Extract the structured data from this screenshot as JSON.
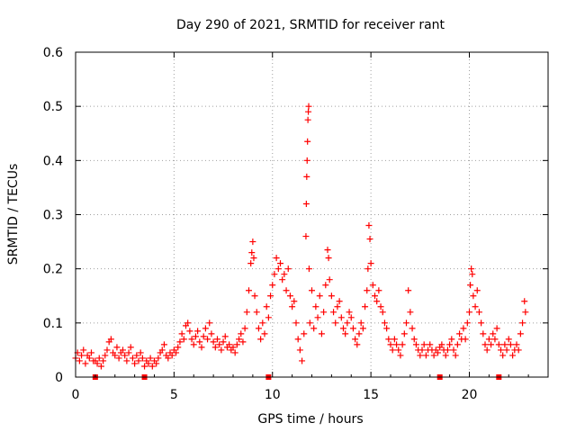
{
  "chart_data": {
    "type": "scatter",
    "title": "Day 290 of 2021, SRMTID for receiver rant",
    "xlabel": "GPS time / hours",
    "ylabel": "SRMTID / TECUs",
    "xlim": [
      0,
      24
    ],
    "ylim": [
      0,
      0.6
    ],
    "xticks": [
      0,
      5,
      10,
      15,
      20
    ],
    "yticks": [
      0,
      0.1,
      0.2,
      0.3,
      0.4,
      0.5,
      0.6
    ],
    "xtick_labels": [
      "0",
      "5",
      "10",
      "15",
      "20"
    ],
    "ytick_labels": [
      "0",
      "0.1",
      "0.2",
      "0.3",
      "0.4",
      "0.5",
      "0.6"
    ],
    "grid": true,
    "marker": "plus",
    "color": "#ff0000",
    "series": [
      {
        "name": "SRMTID",
        "points": [
          [
            0.0,
            0.035
          ],
          [
            0.1,
            0.045
          ],
          [
            0.2,
            0.03
          ],
          [
            0.3,
            0.04
          ],
          [
            0.4,
            0.05
          ],
          [
            0.5,
            0.025
          ],
          [
            0.6,
            0.04
          ],
          [
            0.7,
            0.035
          ],
          [
            0.8,
            0.045
          ],
          [
            0.9,
            0.03
          ],
          [
            1.0,
            0.03
          ],
          [
            1.1,
            0.025
          ],
          [
            1.2,
            0.035
          ],
          [
            1.3,
            0.02
          ],
          [
            1.4,
            0.03
          ],
          [
            1.5,
            0.04
          ],
          [
            1.6,
            0.05
          ],
          [
            1.7,
            0.065
          ],
          [
            1.8,
            0.07
          ],
          [
            1.9,
            0.045
          ],
          [
            2.0,
            0.04
          ],
          [
            2.1,
            0.055
          ],
          [
            2.2,
            0.035
          ],
          [
            2.3,
            0.045
          ],
          [
            2.4,
            0.05
          ],
          [
            2.5,
            0.04
          ],
          [
            2.6,
            0.03
          ],
          [
            2.7,
            0.045
          ],
          [
            2.8,
            0.055
          ],
          [
            2.9,
            0.035
          ],
          [
            3.0,
            0.025
          ],
          [
            3.1,
            0.04
          ],
          [
            3.2,
            0.03
          ],
          [
            3.3,
            0.045
          ],
          [
            3.4,
            0.035
          ],
          [
            3.5,
            0.02
          ],
          [
            3.6,
            0.03
          ],
          [
            3.7,
            0.025
          ],
          [
            3.8,
            0.035
          ],
          [
            3.9,
            0.02
          ],
          [
            4.0,
            0.03
          ],
          [
            4.1,
            0.025
          ],
          [
            4.2,
            0.035
          ],
          [
            4.3,
            0.045
          ],
          [
            4.4,
            0.05
          ],
          [
            4.5,
            0.06
          ],
          [
            4.6,
            0.04
          ],
          [
            4.7,
            0.035
          ],
          [
            4.8,
            0.045
          ],
          [
            4.9,
            0.04
          ],
          [
            5.0,
            0.05
          ],
          [
            5.1,
            0.045
          ],
          [
            5.2,
            0.055
          ],
          [
            5.3,
            0.065
          ],
          [
            5.4,
            0.08
          ],
          [
            5.5,
            0.07
          ],
          [
            5.6,
            0.095
          ],
          [
            5.7,
            0.1
          ],
          [
            5.8,
            0.085
          ],
          [
            5.9,
            0.07
          ],
          [
            6.0,
            0.06
          ],
          [
            6.1,
            0.075
          ],
          [
            6.2,
            0.085
          ],
          [
            6.3,
            0.065
          ],
          [
            6.4,
            0.055
          ],
          [
            6.5,
            0.075
          ],
          [
            6.6,
            0.09
          ],
          [
            6.7,
            0.07
          ],
          [
            6.8,
            0.1
          ],
          [
            6.9,
            0.08
          ],
          [
            7.0,
            0.065
          ],
          [
            7.1,
            0.055
          ],
          [
            7.2,
            0.07
          ],
          [
            7.3,
            0.06
          ],
          [
            7.4,
            0.05
          ],
          [
            7.5,
            0.065
          ],
          [
            7.6,
            0.075
          ],
          [
            7.7,
            0.055
          ],
          [
            7.8,
            0.06
          ],
          [
            7.9,
            0.05
          ],
          [
            8.0,
            0.055
          ],
          [
            8.1,
            0.045
          ],
          [
            8.2,
            0.06
          ],
          [
            8.3,
            0.07
          ],
          [
            8.4,
            0.08
          ],
          [
            8.5,
            0.065
          ],
          [
            8.6,
            0.09
          ],
          [
            8.7,
            0.12
          ],
          [
            8.8,
            0.16
          ],
          [
            8.9,
            0.21
          ],
          [
            8.95,
            0.23
          ],
          [
            9.0,
            0.25
          ],
          [
            9.05,
            0.22
          ],
          [
            9.1,
            0.15
          ],
          [
            9.2,
            0.12
          ],
          [
            9.3,
            0.09
          ],
          [
            9.4,
            0.07
          ],
          [
            9.5,
            0.1
          ],
          [
            9.6,
            0.08
          ],
          [
            9.7,
            0.13
          ],
          [
            9.8,
            0.11
          ],
          [
            9.9,
            0.15
          ],
          [
            10.0,
            0.17
          ],
          [
            10.1,
            0.19
          ],
          [
            10.2,
            0.22
          ],
          [
            10.3,
            0.2
          ],
          [
            10.4,
            0.21
          ],
          [
            10.5,
            0.18
          ],
          [
            10.6,
            0.19
          ],
          [
            10.7,
            0.16
          ],
          [
            10.8,
            0.2
          ],
          [
            10.9,
            0.15
          ],
          [
            11.0,
            0.13
          ],
          [
            11.1,
            0.14
          ],
          [
            11.2,
            0.1
          ],
          [
            11.3,
            0.07
          ],
          [
            11.4,
            0.05
          ],
          [
            11.5,
            0.03
          ],
          [
            11.6,
            0.08
          ],
          [
            11.7,
            0.26
          ],
          [
            11.72,
            0.32
          ],
          [
            11.74,
            0.37
          ],
          [
            11.76,
            0.4
          ],
          [
            11.78,
            0.435
          ],
          [
            11.8,
            0.475
          ],
          [
            11.82,
            0.49
          ],
          [
            11.84,
            0.5
          ],
          [
            11.86,
            0.2
          ],
          [
            11.9,
            0.1
          ],
          [
            12.0,
            0.16
          ],
          [
            12.1,
            0.09
          ],
          [
            12.2,
            0.13
          ],
          [
            12.3,
            0.11
          ],
          [
            12.4,
            0.15
          ],
          [
            12.5,
            0.08
          ],
          [
            12.6,
            0.12
          ],
          [
            12.7,
            0.17
          ],
          [
            12.8,
            0.235
          ],
          [
            12.85,
            0.22
          ],
          [
            12.9,
            0.18
          ],
          [
            13.0,
            0.15
          ],
          [
            13.1,
            0.12
          ],
          [
            13.2,
            0.1
          ],
          [
            13.3,
            0.13
          ],
          [
            13.4,
            0.14
          ],
          [
            13.5,
            0.11
          ],
          [
            13.6,
            0.09
          ],
          [
            13.7,
            0.08
          ],
          [
            13.8,
            0.1
          ],
          [
            13.9,
            0.12
          ],
          [
            14.0,
            0.11
          ],
          [
            14.1,
            0.09
          ],
          [
            14.2,
            0.07
          ],
          [
            14.3,
            0.06
          ],
          [
            14.4,
            0.08
          ],
          [
            14.5,
            0.1
          ],
          [
            14.6,
            0.09
          ],
          [
            14.7,
            0.13
          ],
          [
            14.8,
            0.16
          ],
          [
            14.85,
            0.2
          ],
          [
            14.9,
            0.28
          ],
          [
            14.95,
            0.255
          ],
          [
            15.0,
            0.21
          ],
          [
            15.1,
            0.17
          ],
          [
            15.2,
            0.15
          ],
          [
            15.3,
            0.14
          ],
          [
            15.4,
            0.16
          ],
          [
            15.5,
            0.13
          ],
          [
            15.6,
            0.12
          ],
          [
            15.7,
            0.1
          ],
          [
            15.8,
            0.09
          ],
          [
            15.9,
            0.07
          ],
          [
            16.0,
            0.06
          ],
          [
            16.1,
            0.05
          ],
          [
            16.2,
            0.07
          ],
          [
            16.3,
            0.06
          ],
          [
            16.4,
            0.05
          ],
          [
            16.5,
            0.04
          ],
          [
            16.6,
            0.06
          ],
          [
            16.7,
            0.08
          ],
          [
            16.8,
            0.1
          ],
          [
            16.9,
            0.16
          ],
          [
            17.0,
            0.12
          ],
          [
            17.1,
            0.09
          ],
          [
            17.2,
            0.07
          ],
          [
            17.3,
            0.06
          ],
          [
            17.4,
            0.05
          ],
          [
            17.5,
            0.04
          ],
          [
            17.6,
            0.05
          ],
          [
            17.7,
            0.06
          ],
          [
            17.8,
            0.04
          ],
          [
            17.9,
            0.05
          ],
          [
            18.0,
            0.06
          ],
          [
            18.1,
            0.05
          ],
          [
            18.2,
            0.04
          ],
          [
            18.3,
            0.05
          ],
          [
            18.4,
            0.045
          ],
          [
            18.5,
            0.055
          ],
          [
            18.6,
            0.06
          ],
          [
            18.7,
            0.05
          ],
          [
            18.8,
            0.04
          ],
          [
            18.9,
            0.05
          ],
          [
            19.0,
            0.06
          ],
          [
            19.1,
            0.07
          ],
          [
            19.2,
            0.05
          ],
          [
            19.3,
            0.04
          ],
          [
            19.4,
            0.06
          ],
          [
            19.5,
            0.08
          ],
          [
            19.6,
            0.07
          ],
          [
            19.7,
            0.09
          ],
          [
            19.8,
            0.07
          ],
          [
            19.9,
            0.1
          ],
          [
            20.0,
            0.12
          ],
          [
            20.05,
            0.17
          ],
          [
            20.1,
            0.2
          ],
          [
            20.15,
            0.19
          ],
          [
            20.2,
            0.15
          ],
          [
            20.3,
            0.13
          ],
          [
            20.4,
            0.16
          ],
          [
            20.5,
            0.12
          ],
          [
            20.6,
            0.1
          ],
          [
            20.7,
            0.08
          ],
          [
            20.8,
            0.06
          ],
          [
            20.9,
            0.05
          ],
          [
            21.0,
            0.07
          ],
          [
            21.1,
            0.06
          ],
          [
            21.2,
            0.08
          ],
          [
            21.3,
            0.07
          ],
          [
            21.4,
            0.09
          ],
          [
            21.5,
            0.06
          ],
          [
            21.6,
            0.05
          ],
          [
            21.7,
            0.04
          ],
          [
            21.8,
            0.06
          ],
          [
            21.9,
            0.05
          ],
          [
            22.0,
            0.07
          ],
          [
            22.1,
            0.06
          ],
          [
            22.2,
            0.04
          ],
          [
            22.3,
            0.05
          ],
          [
            22.4,
            0.06
          ],
          [
            22.5,
            0.05
          ],
          [
            22.6,
            0.08
          ],
          [
            22.7,
            0.1
          ],
          [
            22.8,
            0.14
          ],
          [
            22.85,
            0.12
          ]
        ]
      }
    ],
    "baseline_markers_x": [
      1.0,
      3.5,
      9.8,
      18.5,
      21.5
    ]
  }
}
